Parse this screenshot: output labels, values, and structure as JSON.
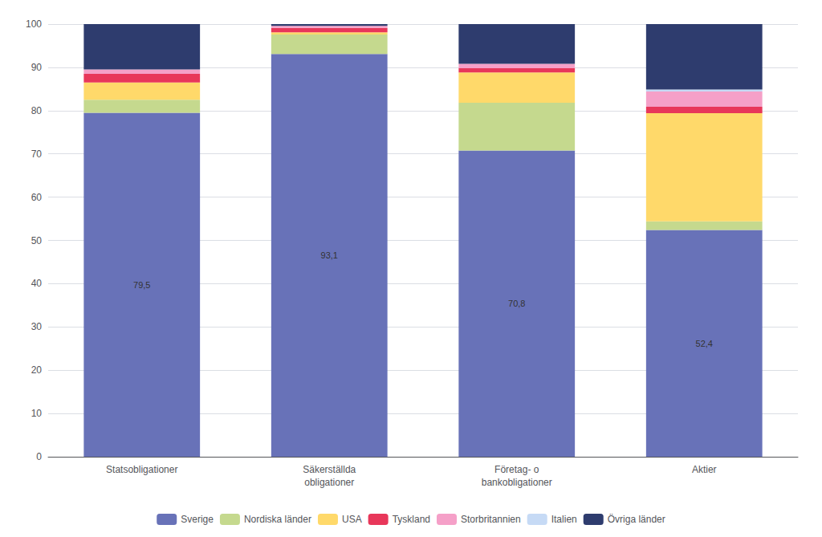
{
  "chart_data": {
    "type": "bar",
    "stacked": true,
    "categories": [
      "Statsobligationer",
      "Säkerställda\nobligationer",
      "Företag- o\nbankobligationer",
      "Aktier"
    ],
    "series": [
      {
        "name": "Sverige",
        "color": "#6872b8",
        "values": [
          79.5,
          93.1,
          70.8,
          52.4
        ],
        "value_labels": [
          "79,5",
          "93,1",
          "70,8",
          "52,4"
        ]
      },
      {
        "name": "Nordiska länder",
        "color": "#c5d98e",
        "values": [
          3.0,
          4.5,
          11.0,
          2.0
        ]
      },
      {
        "name": "USA",
        "color": "#ffd96a",
        "values": [
          4.0,
          0.5,
          7.0,
          25.0
        ]
      },
      {
        "name": "Tyskland",
        "color": "#e8375a",
        "values": [
          2.0,
          1.0,
          1.0,
          1.5
        ]
      },
      {
        "name": "Storbritannien",
        "color": "#f5a0c8",
        "values": [
          1.0,
          0.5,
          1.0,
          3.5
        ]
      },
      {
        "name": "Italien",
        "color": "#c6daf5",
        "values": [
          0.0,
          0.0,
          0.0,
          0.5
        ]
      },
      {
        "name": "Övriga länder",
        "color": "#2e3c6e",
        "values": [
          10.5,
          0.4,
          9.2,
          15.1
        ]
      }
    ],
    "ylim": [
      0,
      100
    ],
    "yticks": [
      0,
      10,
      20,
      30,
      40,
      50,
      60,
      70,
      80,
      90,
      100
    ],
    "grid": true,
    "legend": "bottom"
  }
}
